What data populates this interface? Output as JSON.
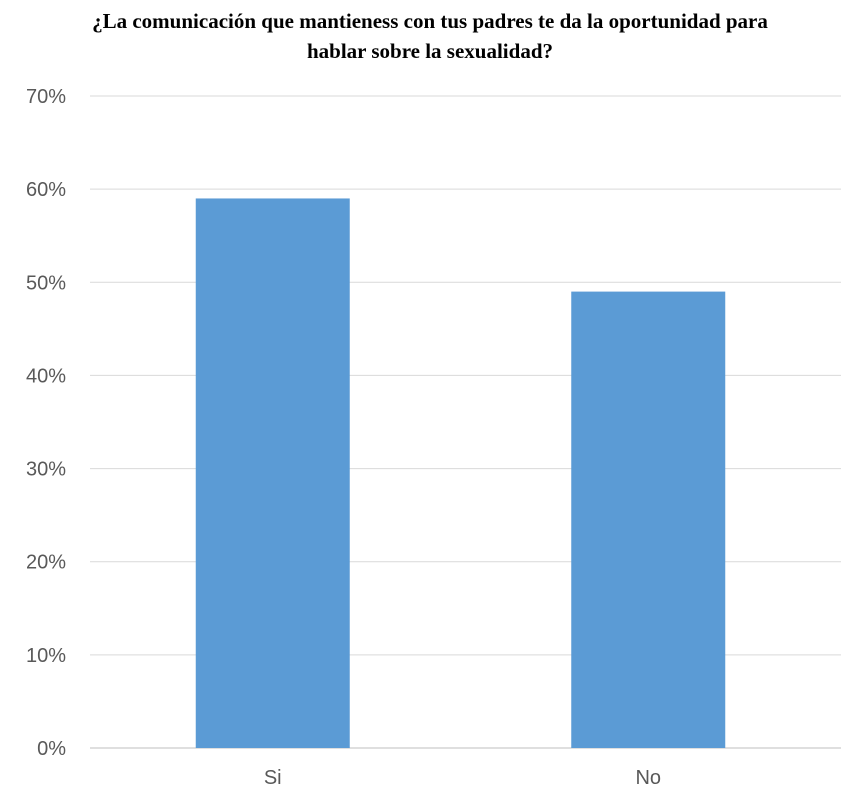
{
  "chart_data": {
    "type": "bar",
    "title": "¿La comunicación que mantieness con tus padres te da la oportunidad para hablar sobre la sexualidad?",
    "categories": [
      "Si",
      "No"
    ],
    "values": [
      59,
      49
    ],
    "value_unit": "percent",
    "ylim": [
      0,
      70
    ],
    "y_ticks": [
      "0%",
      "10%",
      "20%",
      "30%",
      "40%",
      "50%",
      "60%",
      "70%"
    ],
    "xlabel": "",
    "ylabel": "",
    "grid": true,
    "legend": "none",
    "colors": {
      "bar": "#5b9bd5",
      "grid": "#d9d9d9",
      "axis": "#bfbfbf",
      "tick_text": "#595959"
    }
  }
}
